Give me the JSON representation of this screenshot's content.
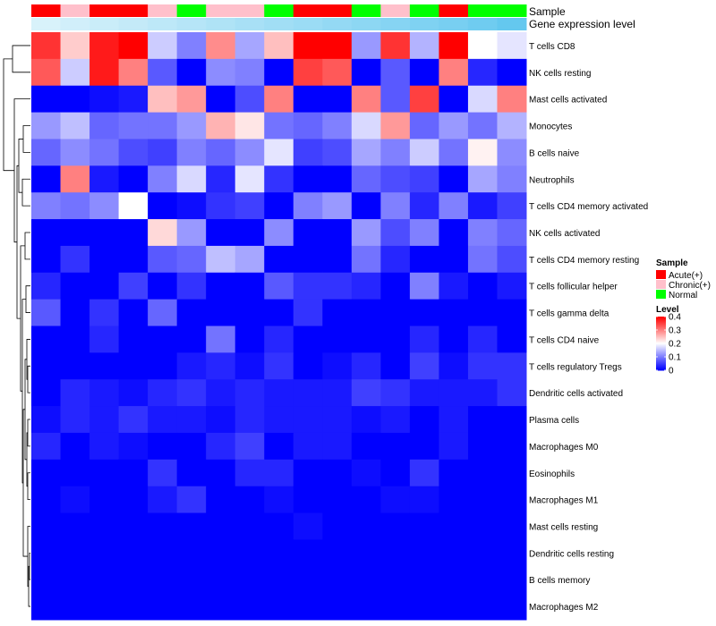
{
  "chart_data": {
    "type": "heatmap",
    "title": "",
    "annotation_rows": [
      "Sample",
      "Gene expression level"
    ],
    "samples": {
      "groups": [
        "Acute(+)",
        "Chronic(+)",
        "Acute(+)",
        "Acute(+)",
        "Chronic(+)",
        "Normal",
        "Chronic(+)",
        "Chronic(+)",
        "Normal",
        "Acute(+)",
        "Acute(+)",
        "Normal",
        "Chronic(+)",
        "Normal",
        "Acute(+)",
        "Normal",
        "Normal"
      ],
      "expression_shade": [
        0.05,
        0.1,
        0.15,
        0.2,
        0.25,
        0.3,
        0.35,
        0.4,
        0.45,
        0.5,
        0.55,
        0.6,
        0.65,
        0.7,
        0.75,
        0.82,
        0.9
      ]
    },
    "rows": [
      "T cells CD8",
      "NK cells resting",
      "Mast cells activated",
      "Monocytes",
      "B cells naive",
      "Neutrophils",
      "T cells CD4 memory activated",
      "NK cells activated",
      "T cells CD4 memory resting",
      "T cells follicular helper",
      "T cells gamma delta",
      "T cells CD4 naive",
      "T cells regulatory  Tregs",
      "Dendritic cells activated",
      "Plasma cells",
      "Macrophages M0",
      "Eosinophils",
      "Macrophages M1",
      "Mast cells resting",
      "Dendritic cells resting",
      "B cells memory",
      "Macrophages M2"
    ],
    "values": [
      [
        0.36,
        0.24,
        0.38,
        0.4,
        0.16,
        0.1,
        0.29,
        0.13,
        0.25,
        0.4,
        0.4,
        0.12,
        0.36,
        0.14,
        0.4,
        0.2,
        0.18
      ],
      [
        0.33,
        0.16,
        0.38,
        0.3,
        0.07,
        0.0,
        0.11,
        0.1,
        0.0,
        0.35,
        0.33,
        0.0,
        0.07,
        0.0,
        0.3,
        0.03,
        0.0
      ],
      [
        0.0,
        0.0,
        0.01,
        0.02,
        0.25,
        0.28,
        0.0,
        0.06,
        0.3,
        0.0,
        0.0,
        0.3,
        0.07,
        0.35,
        0.0,
        0.17,
        0.3
      ],
      [
        0.12,
        0.15,
        0.08,
        0.09,
        0.09,
        0.12,
        0.26,
        0.22,
        0.09,
        0.08,
        0.1,
        0.17,
        0.28,
        0.08,
        0.12,
        0.09,
        0.14
      ],
      [
        0.08,
        0.11,
        0.09,
        0.06,
        0.05,
        0.1,
        0.08,
        0.11,
        0.18,
        0.05,
        0.06,
        0.13,
        0.1,
        0.16,
        0.09,
        0.21,
        0.11
      ],
      [
        0.0,
        0.3,
        0.02,
        0.0,
        0.1,
        0.17,
        0.03,
        0.18,
        0.04,
        0.0,
        0.0,
        0.08,
        0.06,
        0.05,
        0.0,
        0.13,
        0.1
      ],
      [
        0.1,
        0.09,
        0.11,
        0.2,
        0.0,
        0.01,
        0.04,
        0.05,
        0.0,
        0.1,
        0.12,
        0.0,
        0.1,
        0.03,
        0.1,
        0.02,
        0.05
      ],
      [
        0.0,
        0.0,
        0.0,
        0.0,
        0.23,
        0.12,
        0.0,
        0.0,
        0.11,
        0.0,
        0.0,
        0.12,
        0.06,
        0.1,
        0.0,
        0.1,
        0.08
      ],
      [
        0.0,
        0.04,
        0.0,
        0.0,
        0.07,
        0.08,
        0.15,
        0.13,
        0.0,
        0.0,
        0.0,
        0.09,
        0.03,
        0.0,
        0.0,
        0.09,
        0.06
      ],
      [
        0.03,
        0.0,
        0.0,
        0.05,
        0.0,
        0.04,
        0.0,
        0.0,
        0.07,
        0.04,
        0.04,
        0.03,
        0.0,
        0.1,
        0.02,
        0.0,
        0.02
      ],
      [
        0.07,
        0.0,
        0.04,
        0.0,
        0.08,
        0.0,
        0.0,
        0.0,
        0.0,
        0.04,
        0.0,
        0.0,
        0.0,
        0.0,
        0.0,
        0.0,
        0.0
      ],
      [
        0.0,
        0.0,
        0.03,
        0.0,
        0.0,
        0.0,
        0.09,
        0.0,
        0.03,
        0.0,
        0.0,
        0.0,
        0.0,
        0.03,
        0.0,
        0.03,
        0.0
      ],
      [
        0.0,
        0.0,
        0.0,
        0.0,
        0.0,
        0.02,
        0.03,
        0.01,
        0.04,
        0.0,
        0.01,
        0.03,
        0.0,
        0.05,
        0.01,
        0.04,
        0.04
      ],
      [
        0.0,
        0.03,
        0.02,
        0.01,
        0.03,
        0.04,
        0.02,
        0.03,
        0.02,
        0.02,
        0.02,
        0.05,
        0.04,
        0.02,
        0.02,
        0.02,
        0.04
      ],
      [
        0.01,
        0.03,
        0.02,
        0.04,
        0.02,
        0.02,
        0.01,
        0.03,
        0.02,
        0.02,
        0.02,
        0.01,
        0.02,
        0.0,
        0.02,
        0.0,
        0.0
      ],
      [
        0.03,
        0.0,
        0.02,
        0.01,
        0.0,
        0.0,
        0.03,
        0.05,
        0.0,
        0.02,
        0.02,
        0.0,
        0.0,
        0.0,
        0.02,
        0.0,
        0.0
      ],
      [
        0.0,
        0.0,
        0.0,
        0.0,
        0.04,
        0.0,
        0.0,
        0.03,
        0.03,
        0.0,
        0.0,
        0.01,
        0.0,
        0.04,
        0.0,
        0.0,
        0.0
      ],
      [
        0.0,
        0.01,
        0.0,
        0.0,
        0.02,
        0.04,
        0.0,
        0.0,
        0.01,
        0.0,
        0.0,
        0.0,
        0.01,
        0.01,
        0.0,
        0.0,
        0.0
      ],
      [
        0.0,
        0.0,
        0.0,
        0.0,
        0.0,
        0.0,
        0.0,
        0.0,
        0.0,
        0.01,
        0.0,
        0.0,
        0.0,
        0.0,
        0.0,
        0.0,
        0.0
      ],
      [
        0.0,
        0.0,
        0.0,
        0.0,
        0.0,
        0.0,
        0.0,
        0.0,
        0.0,
        0.0,
        0.0,
        0.0,
        0.0,
        0.0,
        0.0,
        0.0,
        0.0
      ],
      [
        0.0,
        0.0,
        0.0,
        0.0,
        0.0,
        0.0,
        0.0,
        0.0,
        0.0,
        0.0,
        0.0,
        0.0,
        0.0,
        0.0,
        0.0,
        0.0,
        0.0
      ],
      [
        0.0,
        0.0,
        0.0,
        0.0,
        0.0,
        0.0,
        0.0,
        0.0,
        0.0,
        0.0,
        0.0,
        0.0,
        0.0,
        0.0,
        0.0,
        0.0,
        0.0
      ]
    ],
    "color_scale": {
      "low": "#0000ff",
      "mid": "#ffffff",
      "high": "#ff0000",
      "min": 0,
      "mid_value": 0.2,
      "max": 0.4
    },
    "legend_sample": {
      "title": "Sample",
      "entries": [
        {
          "label": "Acute(+)",
          "color": "#ff0000"
        },
        {
          "label": "Chronic(+)",
          "color": "#ffc0cb"
        },
        {
          "label": "Normal",
          "color": "#00ff00"
        }
      ]
    },
    "legend_level": {
      "title": "Level",
      "ticks": [
        "0.4",
        "0.3",
        "0.2",
        "0.1",
        "0"
      ],
      "tick_values": [
        0.4,
        0.3,
        0.2,
        0.1,
        0
      ]
    },
    "expression_colors": {
      "light": "#dff4fb",
      "dark": "#56c3ee"
    },
    "dendrogram": "row clustering tree (left)"
  }
}
